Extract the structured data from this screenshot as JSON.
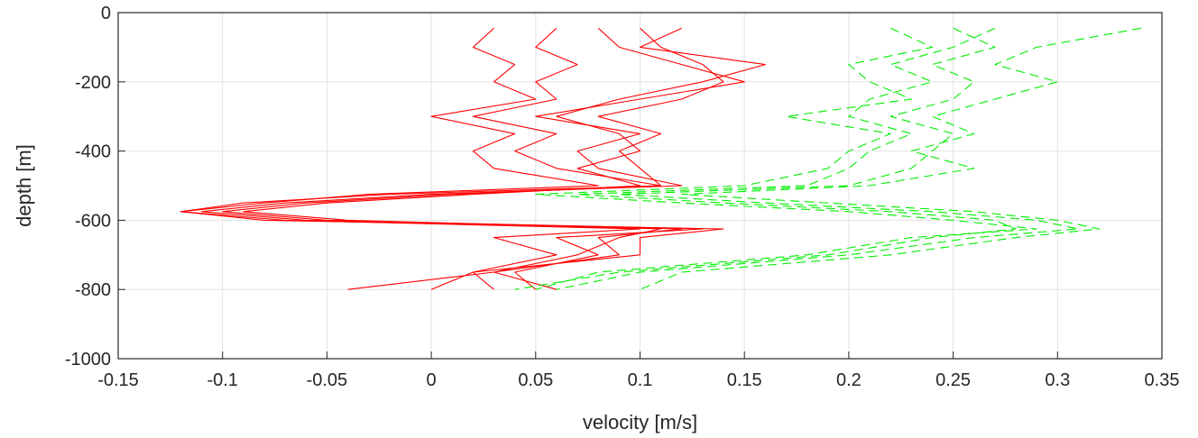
{
  "chart_data": {
    "type": "line",
    "title": "",
    "xlabel": "velocity [m/s]",
    "ylabel": "depth [m]",
    "xlim": [
      -0.15,
      0.35
    ],
    "ylim": [
      -1000,
      0
    ],
    "xticks": [
      -0.15,
      -0.1,
      -0.05,
      0,
      0.05,
      0.1,
      0.15,
      0.2,
      0.25,
      0.3,
      0.35
    ],
    "xtick_labels": [
      "-0.15",
      "-0.1",
      "-0.05",
      "0",
      "0.05",
      "0.1",
      "0.15",
      "0.2",
      "0.25",
      "0.3",
      "0.35"
    ],
    "yticks": [
      0,
      -200,
      -400,
      -600,
      -800,
      -1000
    ],
    "ytick_labels": [
      "0",
      "-200",
      "-400",
      "-600",
      "-800",
      "-1000"
    ],
    "grid": true,
    "legend": "none",
    "colors": {
      "red_series": "#ff0000",
      "green_series": "#00ee00"
    },
    "series": [
      {
        "color": "red",
        "line_style": "solid",
        "depth": [
          -45,
          -100,
          -150,
          -200,
          -250,
          -300,
          -350,
          -400,
          -450,
          -500,
          -525,
          -550,
          -575,
          -600,
          -625,
          -650,
          -700,
          -750,
          -800
        ],
        "values": [
          0.03,
          0.02,
          0.04,
          0.03,
          0.05,
          0.0,
          0.04,
          0.02,
          0.03,
          0.08,
          -0.03,
          -0.08,
          -0.12,
          -0.07,
          0.1,
          0.03,
          0.06,
          0.02,
          0.03
        ]
      },
      {
        "color": "red",
        "line_style": "solid",
        "depth": [
          -45,
          -100,
          -150,
          -200,
          -250,
          -300,
          -350,
          -400,
          -450,
          -500,
          -525,
          -550,
          -575,
          -600,
          -625,
          -650,
          -700,
          -750,
          -800
        ],
        "values": [
          0.06,
          0.05,
          0.07,
          0.05,
          0.06,
          0.02,
          0.06,
          0.04,
          0.06,
          0.11,
          0.01,
          -0.06,
          -0.1,
          -0.05,
          0.13,
          0.06,
          0.08,
          0.04,
          0.05
        ]
      },
      {
        "color": "red",
        "line_style": "solid",
        "depth": [
          -45,
          -100,
          -150,
          -200,
          -250,
          -300,
          -350,
          -400,
          -450,
          -500,
          -525,
          -550,
          -575,
          -600,
          -625,
          -650,
          -700,
          -750,
          -800
        ],
        "values": [
          0.08,
          0.09,
          0.12,
          0.15,
          0.1,
          0.05,
          0.1,
          0.07,
          0.08,
          0.12,
          0.0,
          -0.07,
          -0.11,
          -0.06,
          0.12,
          0.08,
          0.09,
          0.03,
          0.06
        ]
      },
      {
        "color": "red",
        "line_style": "solid",
        "depth": [
          -45,
          -100,
          -150,
          -200,
          -250,
          -300,
          -350,
          -400,
          -450,
          -500,
          -525,
          -550,
          -575,
          -600,
          -625,
          -650,
          -700,
          -750,
          -800
        ],
        "values": [
          0.1,
          0.11,
          0.13,
          0.14,
          0.12,
          0.08,
          0.11,
          0.09,
          0.1,
          0.11,
          -0.02,
          -0.09,
          -0.12,
          -0.08,
          0.14,
          0.1,
          0.1,
          0.02,
          0.0
        ]
      },
      {
        "color": "red",
        "line_style": "solid",
        "depth": [
          -45,
          -100,
          -150,
          -200,
          -250,
          -300,
          -350,
          -400,
          -450,
          -500,
          -525,
          -550,
          -575,
          -600,
          -625,
          -650,
          -700,
          -750,
          -800
        ],
        "values": [
          0.12,
          0.1,
          0.16,
          0.13,
          0.09,
          0.06,
          0.09,
          0.1,
          0.07,
          0.1,
          0.02,
          -0.05,
          -0.09,
          -0.04,
          0.11,
          0.09,
          0.07,
          0.03,
          -0.04
        ]
      },
      {
        "color": "green",
        "line_style": "dashed",
        "depth": [
          -45,
          -100,
          -150,
          -200,
          -250,
          -300,
          -350,
          -400,
          -450,
          -500,
          -525,
          -550,
          -575,
          -600,
          -625,
          -650,
          -700,
          -750,
          -800
        ],
        "values": [
          0.22,
          0.24,
          0.2,
          0.21,
          0.23,
          0.17,
          0.22,
          0.2,
          0.19,
          0.15,
          0.05,
          0.12,
          0.2,
          0.25,
          0.29,
          0.23,
          0.18,
          0.08,
          0.05
        ]
      },
      {
        "color": "green",
        "line_style": "dashed",
        "depth": [
          -45,
          -100,
          -150,
          -200,
          -250,
          -300,
          -350,
          -400,
          -450,
          -500,
          -525,
          -550,
          -575,
          -600,
          -625,
          -650,
          -700,
          -750,
          -800
        ],
        "values": [
          0.25,
          0.27,
          0.24,
          0.26,
          0.25,
          0.22,
          0.25,
          0.24,
          0.23,
          0.2,
          0.09,
          0.16,
          0.24,
          0.29,
          0.31,
          0.26,
          0.2,
          0.1,
          0.06
        ]
      },
      {
        "color": "green",
        "line_style": "dashed",
        "depth": [
          -45,
          -100,
          -150,
          -200,
          -250,
          -300,
          -350,
          -400,
          -450,
          -500,
          -525,
          -550,
          -575,
          -600,
          -625,
          -650,
          -700,
          -750,
          -800
        ],
        "values": [
          0.34,
          0.29,
          0.27,
          0.3,
          0.27,
          0.24,
          0.26,
          0.23,
          0.26,
          0.21,
          0.12,
          0.19,
          0.26,
          0.3,
          0.32,
          0.28,
          0.22,
          0.12,
          0.1
        ]
      },
      {
        "color": "green",
        "line_style": "dashed",
        "depth": [
          -45,
          -100,
          -150,
          -200,
          -250,
          -300,
          -350,
          -400,
          -450,
          -500,
          -525,
          -550,
          -575,
          -600,
          -625,
          -650,
          -700,
          -750,
          -800
        ],
        "values": [
          0.27,
          0.25,
          0.22,
          0.24,
          0.21,
          0.2,
          0.23,
          0.21,
          0.2,
          0.18,
          0.07,
          0.14,
          0.22,
          0.27,
          0.28,
          0.24,
          0.19,
          0.09,
          0.04
        ]
      }
    ]
  }
}
